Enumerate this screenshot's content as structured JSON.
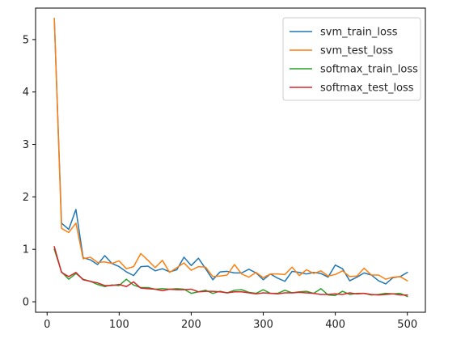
{
  "chart_data": {
    "type": "line",
    "title": "",
    "xlabel": "",
    "ylabel": "",
    "xlim": [
      -16,
      525
    ],
    "ylim": [
      -0.2,
      5.6
    ],
    "xticks": [
      0,
      100,
      200,
      300,
      400,
      500
    ],
    "yticks": [
      0,
      1,
      2,
      3,
      4,
      5
    ],
    "legend_position": "top-right",
    "x": [
      10,
      20,
      30,
      40,
      50,
      60,
      70,
      80,
      90,
      100,
      110,
      120,
      130,
      140,
      150,
      160,
      170,
      180,
      190,
      200,
      210,
      220,
      230,
      240,
      250,
      260,
      270,
      280,
      290,
      300,
      310,
      320,
      330,
      340,
      350,
      360,
      370,
      380,
      390,
      400,
      410,
      420,
      430,
      440,
      450,
      460,
      470,
      480,
      490,
      500
    ],
    "series": [
      {
        "name": "svm_train_loss",
        "color": "#1f77b4",
        "values": [
          5.4,
          1.5,
          1.38,
          1.76,
          0.84,
          0.8,
          0.71,
          0.88,
          0.73,
          0.67,
          0.57,
          0.5,
          0.67,
          0.68,
          0.59,
          0.63,
          0.57,
          0.61,
          0.85,
          0.69,
          0.83,
          0.63,
          0.42,
          0.57,
          0.58,
          0.55,
          0.55,
          0.62,
          0.55,
          0.42,
          0.53,
          0.45,
          0.39,
          0.58,
          0.56,
          0.53,
          0.56,
          0.54,
          0.47,
          0.7,
          0.63,
          0.4,
          0.47,
          0.55,
          0.51,
          0.4,
          0.34,
          0.46,
          0.48,
          0.56
        ]
      },
      {
        "name": "svm_test_loss",
        "color": "#ff7f0e",
        "values": [
          5.4,
          1.4,
          1.32,
          1.5,
          0.82,
          0.85,
          0.75,
          0.76,
          0.73,
          0.78,
          0.63,
          0.67,
          0.92,
          0.79,
          0.65,
          0.79,
          0.56,
          0.65,
          0.74,
          0.6,
          0.67,
          0.66,
          0.48,
          0.49,
          0.51,
          0.71,
          0.53,
          0.47,
          0.56,
          0.46,
          0.53,
          0.53,
          0.52,
          0.66,
          0.5,
          0.61,
          0.54,
          0.59,
          0.49,
          0.52,
          0.59,
          0.48,
          0.49,
          0.64,
          0.51,
          0.51,
          0.43,
          0.47,
          0.48,
          0.4
        ]
      },
      {
        "name": "softmax_train_loss",
        "color": "#2ca02c",
        "values": [
          1.0,
          0.57,
          0.43,
          0.54,
          0.43,
          0.39,
          0.33,
          0.29,
          0.32,
          0.31,
          0.43,
          0.32,
          0.27,
          0.27,
          0.24,
          0.25,
          0.24,
          0.25,
          0.24,
          0.16,
          0.19,
          0.22,
          0.16,
          0.2,
          0.17,
          0.22,
          0.23,
          0.18,
          0.16,
          0.23,
          0.16,
          0.16,
          0.22,
          0.17,
          0.19,
          0.2,
          0.16,
          0.25,
          0.13,
          0.12,
          0.2,
          0.14,
          0.16,
          0.16,
          0.13,
          0.14,
          0.16,
          0.15,
          0.16,
          0.1
        ]
      },
      {
        "name": "softmax_test_loss",
        "color": "#d62728",
        "values": [
          1.05,
          0.56,
          0.48,
          0.56,
          0.42,
          0.39,
          0.36,
          0.31,
          0.31,
          0.33,
          0.29,
          0.38,
          0.26,
          0.25,
          0.24,
          0.21,
          0.24,
          0.23,
          0.23,
          0.24,
          0.19,
          0.2,
          0.2,
          0.19,
          0.17,
          0.19,
          0.19,
          0.17,
          0.15,
          0.17,
          0.16,
          0.15,
          0.17,
          0.17,
          0.18,
          0.17,
          0.16,
          0.14,
          0.14,
          0.15,
          0.14,
          0.17,
          0.15,
          0.16,
          0.14,
          0.13,
          0.14,
          0.15,
          0.13,
          0.13
        ]
      }
    ]
  }
}
